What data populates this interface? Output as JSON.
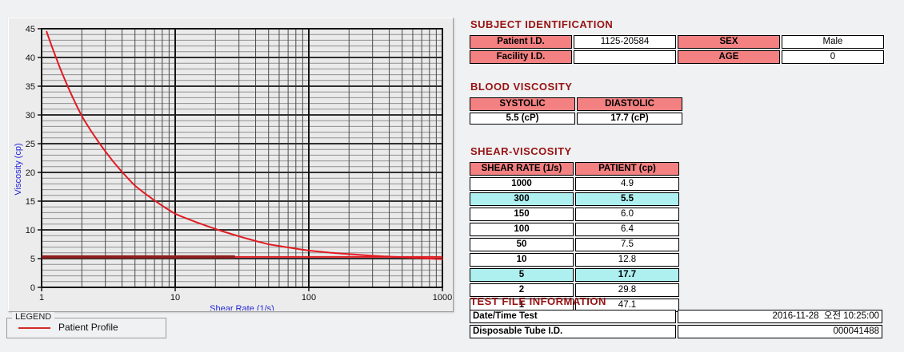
{
  "colors": {
    "accent_maroon": "#971212",
    "table_header_bg": "#F38181",
    "highlight_bg": "#AEEFEF",
    "curve_red": "#E11B22",
    "curve_dark_red": "#8E1F1F",
    "axis_label_blue": "#2424D6"
  },
  "legend": {
    "title": "LEGEND",
    "series_label": "Patient Profile",
    "line_color": "#D42A2A"
  },
  "subject_identification": {
    "title": "SUBJECT IDENTIFICATION",
    "rows": [
      {
        "label1": "Patient I.D.",
        "value1": "1125-20584",
        "label2": "SEX",
        "value2": "Male"
      },
      {
        "label1": "Facility I.D.",
        "value1": "",
        "label2": "AGE",
        "value2": "0"
      }
    ]
  },
  "blood_viscosity": {
    "title": "BLOOD VISCOSITY",
    "headers": [
      "SYSTOLIC",
      "DIASTOLIC"
    ],
    "values": [
      "5.5 (cP)",
      "17.7 (cP)"
    ]
  },
  "shear_viscosity": {
    "title": "SHEAR-VISCOSITY",
    "headers": [
      "SHEAR RATE (1/s)",
      "PATIENT (cp)"
    ],
    "rows": [
      {
        "rate": "1000",
        "value": "4.9",
        "highlight": false
      },
      {
        "rate": "300",
        "value": "5.5",
        "highlight": true
      },
      {
        "rate": "150",
        "value": "6.0",
        "highlight": false
      },
      {
        "rate": "100",
        "value": "6.4",
        "highlight": false
      },
      {
        "rate": "50",
        "value": "7.5",
        "highlight": false
      },
      {
        "rate": "10",
        "value": "12.8",
        "highlight": false
      },
      {
        "rate": "5",
        "value": "17.7",
        "highlight": true
      },
      {
        "rate": "2",
        "value": "29.8",
        "highlight": false
      },
      {
        "rate": "1",
        "value": "47.1",
        "highlight": false
      }
    ]
  },
  "test_file_information": {
    "title": "TEST FILE INFORMATION",
    "rows": [
      {
        "label": "Date/Time Test",
        "value": "2016-11-28  오전 10:25:00"
      },
      {
        "label": "Disposable Tube I.D.",
        "value": "000041488"
      }
    ]
  },
  "chart_data": {
    "type": "line",
    "title": "",
    "xlabel": "Shear Rate (1/s)",
    "ylabel": "Viscosity (cp)",
    "x_scale": "log",
    "xlim": [
      1,
      1000
    ],
    "ylim": [
      0,
      45
    ],
    "x_ticks": [
      1,
      10,
      100,
      1000
    ],
    "y_ticks": [
      0,
      5,
      10,
      15,
      20,
      25,
      30,
      35,
      40,
      45
    ],
    "grid": true,
    "legend_position": "below-left",
    "series": [
      {
        "name": "Patient Profile",
        "color": "#E11B22",
        "x": [
          1,
          2,
          5,
          10,
          50,
          100,
          150,
          300,
          1000
        ],
        "y": [
          47.1,
          29.8,
          17.7,
          12.8,
          7.5,
          6.4,
          6.0,
          5.5,
          4.9
        ]
      }
    ],
    "reference_line": {
      "value": 5.3,
      "color": "#E11B22",
      "dark_color": "#8E1F1F",
      "dark_segment_x": [
        1,
        28
      ]
    }
  }
}
